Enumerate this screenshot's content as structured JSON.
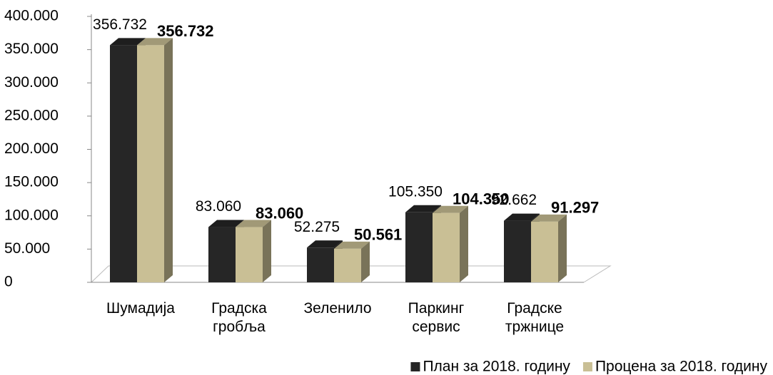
{
  "chart_data": {
    "type": "bar3d",
    "categories": [
      "Шумадија",
      "Градска гробља",
      "Зеленило",
      "Паркинг сервис",
      "Градске тржнице"
    ],
    "series": [
      {
        "name": "План за 2018. годину",
        "color": "#262626",
        "values": [
          356732,
          83060,
          52275,
          105350,
          92662
        ],
        "value_labels": [
          "356.732",
          "83.060",
          "52.275",
          "105.350",
          "92.662"
        ]
      },
      {
        "name": "Процена за 2018. годину",
        "color": "#c9bf95",
        "values": [
          356732,
          83060,
          50561,
          104350,
          91297
        ],
        "value_labels": [
          "356.732",
          "83.060",
          "50.561",
          "104.350",
          "91.297"
        ]
      }
    ],
    "ylim": [
      0,
      400000
    ],
    "yticks": [
      {
        "value": 0,
        "label": "0"
      },
      {
        "value": 50000,
        "label": "50.000"
      },
      {
        "value": 100000,
        "label": "100.000"
      },
      {
        "value": 150000,
        "label": "150.000"
      },
      {
        "value": 200000,
        "label": "200.000"
      },
      {
        "value": 250000,
        "label": "250.000"
      },
      {
        "value": 300000,
        "label": "300.000"
      },
      {
        "value": 350000,
        "label": "350.000"
      },
      {
        "value": 400000,
        "label": "400.000"
      }
    ],
    "legend": "bottom-right"
  }
}
